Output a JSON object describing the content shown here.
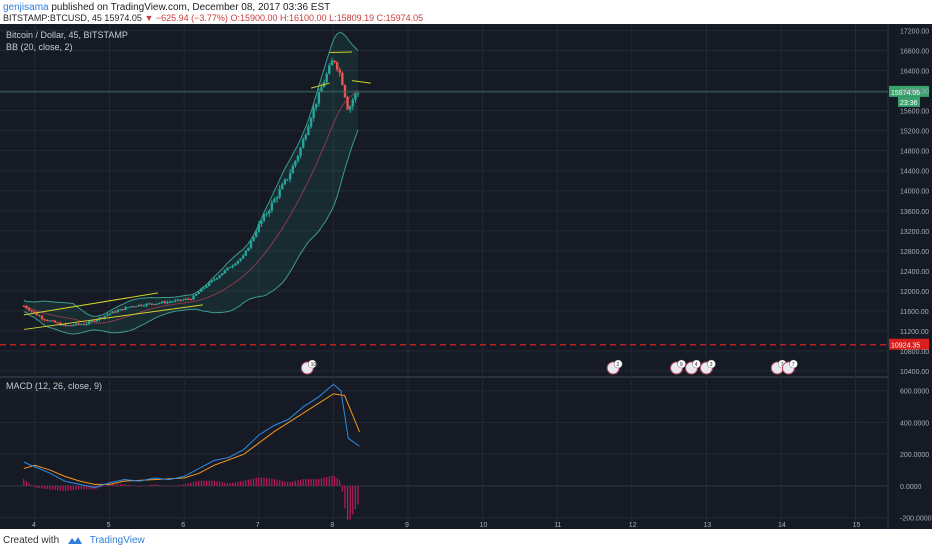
{
  "header": {
    "user": "genjisama",
    "published": "published on TradingView.com, December 08, 2017 03:36 EST",
    "symbol": "BITSTAMP:BTCUSD, 45",
    "last": "15974.05",
    "change": "−625.94 (−3.77%)",
    "ohlc_open": "O:15900.00",
    "ohlc_high": "H:16100.00",
    "ohlc_low": "L:15809.19",
    "ohlc_close": "C:15974.05"
  },
  "footer": {
    "created": "Created with",
    "brand": "TradingView",
    "icon": "tradingview-logo-icon"
  },
  "colors": {
    "bg": "#151a24",
    "up": "#26a69a",
    "down": "#ef5350",
    "price_label": "#37a36a",
    "level_label": "#d91e1e",
    "macd": "#2f8ae5",
    "signal": "#f5961e",
    "hist": "#c2185b",
    "bb": "#3c9c8e",
    "trend": "#d4d22a"
  },
  "chart_data": [
    {
      "type": "line",
      "title": "Bitcoin / Dollar, 45, BITSTAMP",
      "indicator": "BB (20, close, 2)",
      "x_ticks": [
        "4",
        "5",
        "6",
        "7",
        "8",
        "9",
        "10",
        "11",
        "12",
        "13",
        "14",
        "15"
      ],
      "y_ticks": [
        "17200.00",
        "16800.00",
        "16400.00",
        "16000.00",
        "15600.00",
        "15200.00",
        "14800.00",
        "14400.00",
        "14000.00",
        "13600.00",
        "13200.00",
        "12800.00",
        "12400.00",
        "12000.00",
        "11600.00",
        "11200.00",
        "10800.00",
        "10400.00"
      ],
      "ylim": [
        10300,
        17250
      ],
      "last_price_label": "15974.05",
      "time_label": "23:36",
      "level_label": "10924.35",
      "level": 10924.35,
      "closes_x": [
        3.85,
        8.35
      ],
      "anchors": [
        {
          "x": 3.85,
          "y": 11700
        },
        {
          "x": 4.1,
          "y": 11450
        },
        {
          "x": 4.4,
          "y": 11300
        },
        {
          "x": 4.7,
          "y": 11350
        },
        {
          "x": 5.0,
          "y": 11550
        },
        {
          "x": 5.3,
          "y": 11700
        },
        {
          "x": 5.6,
          "y": 11750
        },
        {
          "x": 5.9,
          "y": 11800
        },
        {
          "x": 6.1,
          "y": 11850
        },
        {
          "x": 6.25,
          "y": 12050
        },
        {
          "x": 6.5,
          "y": 12350
        },
        {
          "x": 6.8,
          "y": 12700
        },
        {
          "x": 7.0,
          "y": 13300
        },
        {
          "x": 7.2,
          "y": 13800
        },
        {
          "x": 7.4,
          "y": 14300
        },
        {
          "x": 7.55,
          "y": 14800
        },
        {
          "x": 7.7,
          "y": 15500
        },
        {
          "x": 7.85,
          "y": 16100
        },
        {
          "x": 8.0,
          "y": 16650
        },
        {
          "x": 8.1,
          "y": 16300
        },
        {
          "x": 8.2,
          "y": 15600
        },
        {
          "x": 8.28,
          "y": 15900
        },
        {
          "x": 8.35,
          "y": 15974
        }
      ],
      "trendlines": [
        {
          "x1": 3.85,
          "y1": 11520,
          "x2": 5.65,
          "y2": 11960
        },
        {
          "x1": 3.85,
          "y1": 11230,
          "x2": 6.25,
          "y2": 11720
        },
        {
          "x1": 7.7,
          "y1": 16050,
          "x2": 7.95,
          "y2": 16150
        },
        {
          "x1": 7.95,
          "y1": 16760,
          "x2": 8.25,
          "y2": 16770
        },
        {
          "x1": 8.25,
          "y1": 16200,
          "x2": 8.5,
          "y2": 16150
        }
      ],
      "event_flags": [
        {
          "x": 7.65,
          "label": "10"
        },
        {
          "x": 11.75,
          "label": "2"
        },
        {
          "x": 12.6,
          "label": "9"
        },
        {
          "x": 12.8,
          "label": "4"
        },
        {
          "x": 13.0,
          "label": "3"
        },
        {
          "x": 13.95,
          "label": "7"
        },
        {
          "x": 14.1,
          "label": "7"
        }
      ]
    },
    {
      "type": "line",
      "title": "MACD (12, 26, close, 9)",
      "y_ticks": [
        "600.0000",
        "400.0000",
        "200.0000",
        "0.0000",
        "-200.0000"
      ],
      "ylim": [
        -240,
        680
      ],
      "macd": [
        {
          "x": 3.85,
          "y": 150
        },
        {
          "x": 4.0,
          "y": 120
        },
        {
          "x": 4.2,
          "y": 80
        },
        {
          "x": 4.4,
          "y": 30
        },
        {
          "x": 4.6,
          "y": 10
        },
        {
          "x": 4.8,
          "y": -10
        },
        {
          "x": 5.0,
          "y": 20
        },
        {
          "x": 5.2,
          "y": 40
        },
        {
          "x": 5.4,
          "y": 30
        },
        {
          "x": 5.6,
          "y": 50
        },
        {
          "x": 5.8,
          "y": 40
        },
        {
          "x": 6.0,
          "y": 60
        },
        {
          "x": 6.2,
          "y": 110
        },
        {
          "x": 6.4,
          "y": 160
        },
        {
          "x": 6.6,
          "y": 180
        },
        {
          "x": 6.8,
          "y": 230
        },
        {
          "x": 7.0,
          "y": 320
        },
        {
          "x": 7.2,
          "y": 380
        },
        {
          "x": 7.4,
          "y": 420
        },
        {
          "x": 7.6,
          "y": 500
        },
        {
          "x": 7.8,
          "y": 560
        },
        {
          "x": 8.0,
          "y": 640
        },
        {
          "x": 8.1,
          "y": 600
        },
        {
          "x": 8.2,
          "y": 300
        },
        {
          "x": 8.35,
          "y": 250
        }
      ],
      "signal": [
        {
          "x": 3.85,
          "y": 110
        },
        {
          "x": 4.0,
          "y": 130
        },
        {
          "x": 4.2,
          "y": 100
        },
        {
          "x": 4.4,
          "y": 60
        },
        {
          "x": 4.6,
          "y": 30
        },
        {
          "x": 4.8,
          "y": 10
        },
        {
          "x": 5.0,
          "y": 10
        },
        {
          "x": 5.2,
          "y": 30
        },
        {
          "x": 5.4,
          "y": 35
        },
        {
          "x": 5.6,
          "y": 40
        },
        {
          "x": 5.8,
          "y": 45
        },
        {
          "x": 6.0,
          "y": 50
        },
        {
          "x": 6.2,
          "y": 80
        },
        {
          "x": 6.4,
          "y": 130
        },
        {
          "x": 6.6,
          "y": 165
        },
        {
          "x": 6.8,
          "y": 200
        },
        {
          "x": 7.0,
          "y": 270
        },
        {
          "x": 7.2,
          "y": 340
        },
        {
          "x": 7.4,
          "y": 400
        },
        {
          "x": 7.6,
          "y": 460
        },
        {
          "x": 7.8,
          "y": 520
        },
        {
          "x": 8.0,
          "y": 580
        },
        {
          "x": 8.15,
          "y": 570
        },
        {
          "x": 8.35,
          "y": 340
        }
      ],
      "histogram_range": [
        3.85,
        8.35
      ]
    }
  ]
}
